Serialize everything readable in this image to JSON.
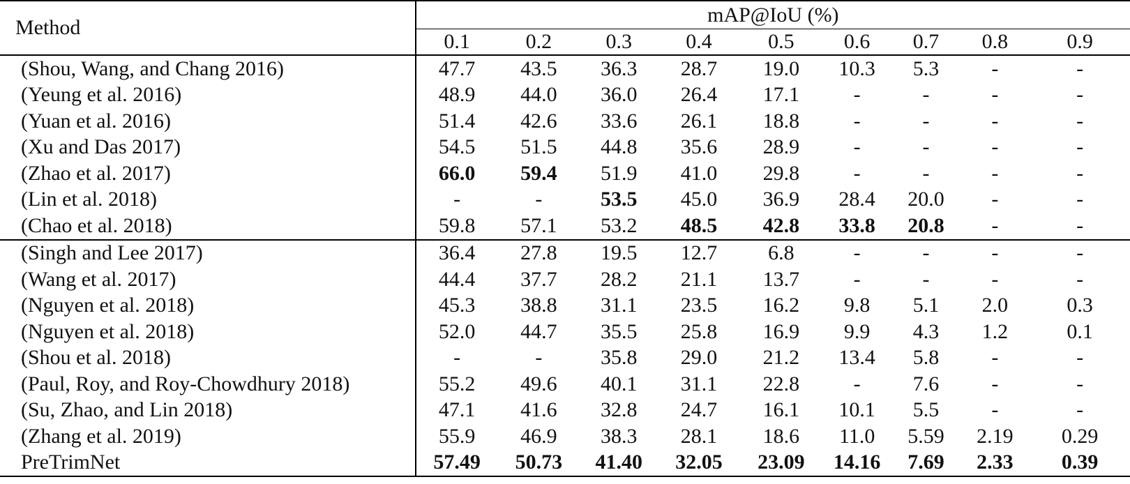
{
  "header": {
    "method": "Method",
    "group": "mAP@IoU (%)",
    "thresholds": [
      "0.1",
      "0.2",
      "0.3",
      "0.4",
      "0.5",
      "0.6",
      "0.7",
      "0.8",
      "0.9"
    ]
  },
  "groups": [
    {
      "rows": [
        {
          "method": "(Shou, Wang, and Chang 2016)",
          "values": [
            "47.7",
            "43.5",
            "36.3",
            "28.7",
            "19.0",
            "10.3",
            "5.3",
            "-",
            "-"
          ],
          "bold": []
        },
        {
          "method": "(Yeung et al. 2016)",
          "values": [
            "48.9",
            "44.0",
            "36.0",
            "26.4",
            "17.1",
            "-",
            "-",
            "-",
            "-"
          ],
          "bold": []
        },
        {
          "method": "(Yuan et al. 2016)",
          "values": [
            "51.4",
            "42.6",
            "33.6",
            "26.1",
            "18.8",
            "-",
            "-",
            "-",
            "-"
          ],
          "bold": []
        },
        {
          "method": "(Xu and Das 2017)",
          "values": [
            "54.5",
            "51.5",
            "44.8",
            "35.6",
            "28.9",
            "-",
            "-",
            "-",
            "-"
          ],
          "bold": []
        },
        {
          "method": "(Zhao et al. 2017)",
          "values": [
            "66.0",
            "59.4",
            "51.9",
            "41.0",
            "29.8",
            "-",
            "-",
            "-",
            "-"
          ],
          "bold": [
            0,
            1
          ]
        },
        {
          "method": "(Lin et al. 2018)",
          "values": [
            "-",
            "-",
            "53.5",
            "45.0",
            "36.9",
            "28.4",
            "20.0",
            "-",
            "-"
          ],
          "bold": [
            2
          ]
        },
        {
          "method": "(Chao et al. 2018)",
          "values": [
            "59.8",
            "57.1",
            "53.2",
            "48.5",
            "42.8",
            "33.8",
            "20.8",
            "-",
            "-"
          ],
          "bold": [
            3,
            4,
            5,
            6
          ]
        }
      ]
    },
    {
      "rows": [
        {
          "method": "(Singh and Lee 2017)",
          "values": [
            "36.4",
            "27.8",
            "19.5",
            "12.7",
            "6.8",
            "-",
            "-",
            "-",
            "-"
          ],
          "bold": []
        },
        {
          "method": "(Wang et al. 2017)",
          "values": [
            "44.4",
            "37.7",
            "28.2",
            "21.1",
            "13.7",
            "-",
            "-",
            "-",
            "-"
          ],
          "bold": []
        },
        {
          "method": "(Nguyen et al. 2018)",
          "values": [
            "45.3",
            "38.8",
            "31.1",
            "23.5",
            "16.2",
            "9.8",
            "5.1",
            "2.0",
            "0.3"
          ],
          "bold": []
        },
        {
          "method": "(Nguyen et al. 2018)",
          "values": [
            "52.0",
            "44.7",
            "35.5",
            "25.8",
            "16.9",
            "9.9",
            "4.3",
            "1.2",
            "0.1"
          ],
          "bold": []
        },
        {
          "method": "(Shou et al. 2018)",
          "values": [
            "-",
            "-",
            "35.8",
            "29.0",
            "21.2",
            "13.4",
            "5.8",
            "-",
            "-"
          ],
          "bold": []
        },
        {
          "method": "(Paul, Roy, and Roy-Chowdhury 2018)",
          "values": [
            "55.2",
            "49.6",
            "40.1",
            "31.1",
            "22.8",
            "-",
            "7.6",
            "-",
            "-"
          ],
          "bold": []
        },
        {
          "method": "(Su, Zhao, and Lin 2018)",
          "values": [
            "47.1",
            "41.6",
            "32.8",
            "24.7",
            "16.1",
            "10.1",
            "5.5",
            "-",
            "-"
          ],
          "bold": []
        },
        {
          "method": "(Zhang et al. 2019)",
          "values": [
            "55.9",
            "46.9",
            "38.3",
            "28.1",
            "18.6",
            "11.0",
            "5.59",
            "2.19",
            "0.29"
          ],
          "bold": []
        },
        {
          "method": "PreTrimNet",
          "values": [
            "57.49",
            "50.73",
            "41.40",
            "32.05",
            "23.09",
            "14.16",
            "7.69",
            "2.33",
            "0.39"
          ],
          "bold": [
            0,
            1,
            2,
            3,
            4,
            5,
            6,
            7,
            8
          ]
        }
      ]
    }
  ]
}
